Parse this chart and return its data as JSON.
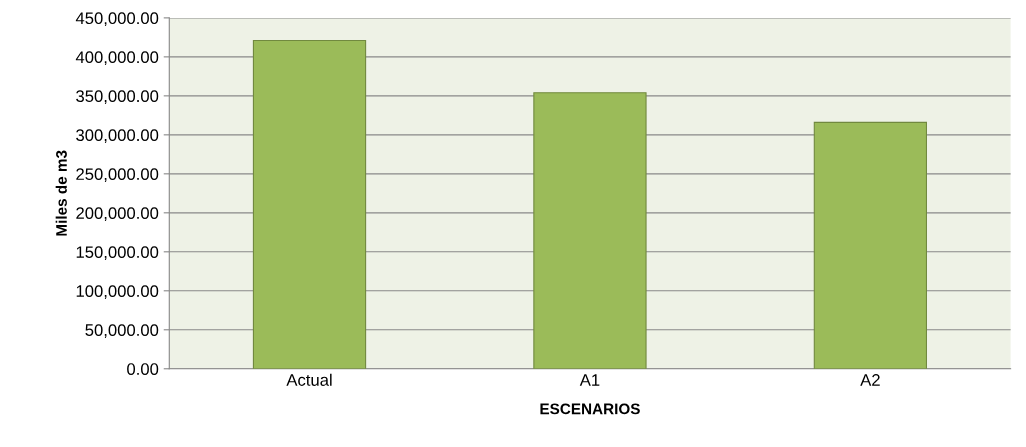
{
  "chart_data": {
    "type": "bar",
    "xlabel": "ESCENARIOS",
    "ylabel": "Miles de m3",
    "categories": [
      "Actual",
      "A1",
      "A2"
    ],
    "values": [
      421000,
      354000,
      316000
    ],
    "color": "#9bbb59",
    "ylim": [
      0,
      450000
    ],
    "yticks": [
      {
        "value": 0,
        "label": "0.00"
      },
      {
        "value": 50000,
        "label": "50,000.00"
      },
      {
        "value": 100000,
        "label": "100,000.00"
      },
      {
        "value": 150000,
        "label": "150,000.00"
      },
      {
        "value": 200000,
        "label": "200,000.00"
      },
      {
        "value": 250000,
        "label": "250,000.00"
      },
      {
        "value": 300000,
        "label": "300,000.00"
      },
      {
        "value": 350000,
        "label": "350,000.00"
      },
      {
        "value": 400000,
        "label": "400,000.00"
      },
      {
        "value": 450000,
        "label": "450,000.00"
      }
    ],
    "grid": "y",
    "legend": false
  }
}
